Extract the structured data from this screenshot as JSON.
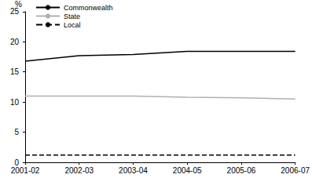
{
  "chart_data": {
    "type": "line",
    "y_label": "%",
    "categories": [
      "2001-02",
      "2002-03",
      "2003-04",
      "2004-05",
      "2005-06",
      "2006-07"
    ],
    "series": [
      {
        "name": "Commonwealth",
        "color": "#000000",
        "line_style": "solid",
        "values": [
          16.8,
          17.7,
          17.9,
          18.4,
          18.4,
          18.4
        ]
      },
      {
        "name": "State",
        "color": "#b0b0b0",
        "line_style": "solid",
        "values": [
          11.0,
          11.0,
          11.0,
          10.8,
          10.7,
          10.5
        ]
      },
      {
        "name": "Local",
        "color": "#000000",
        "line_style": "dashed",
        "values": [
          1.2,
          1.2,
          1.2,
          1.2,
          1.2,
          1.2
        ]
      }
    ],
    "ylim": [
      0,
      25
    ],
    "yticks": [
      0,
      5,
      10,
      15,
      20,
      25
    ],
    "grid": false,
    "legend": "top-left",
    "marker": "none"
  }
}
